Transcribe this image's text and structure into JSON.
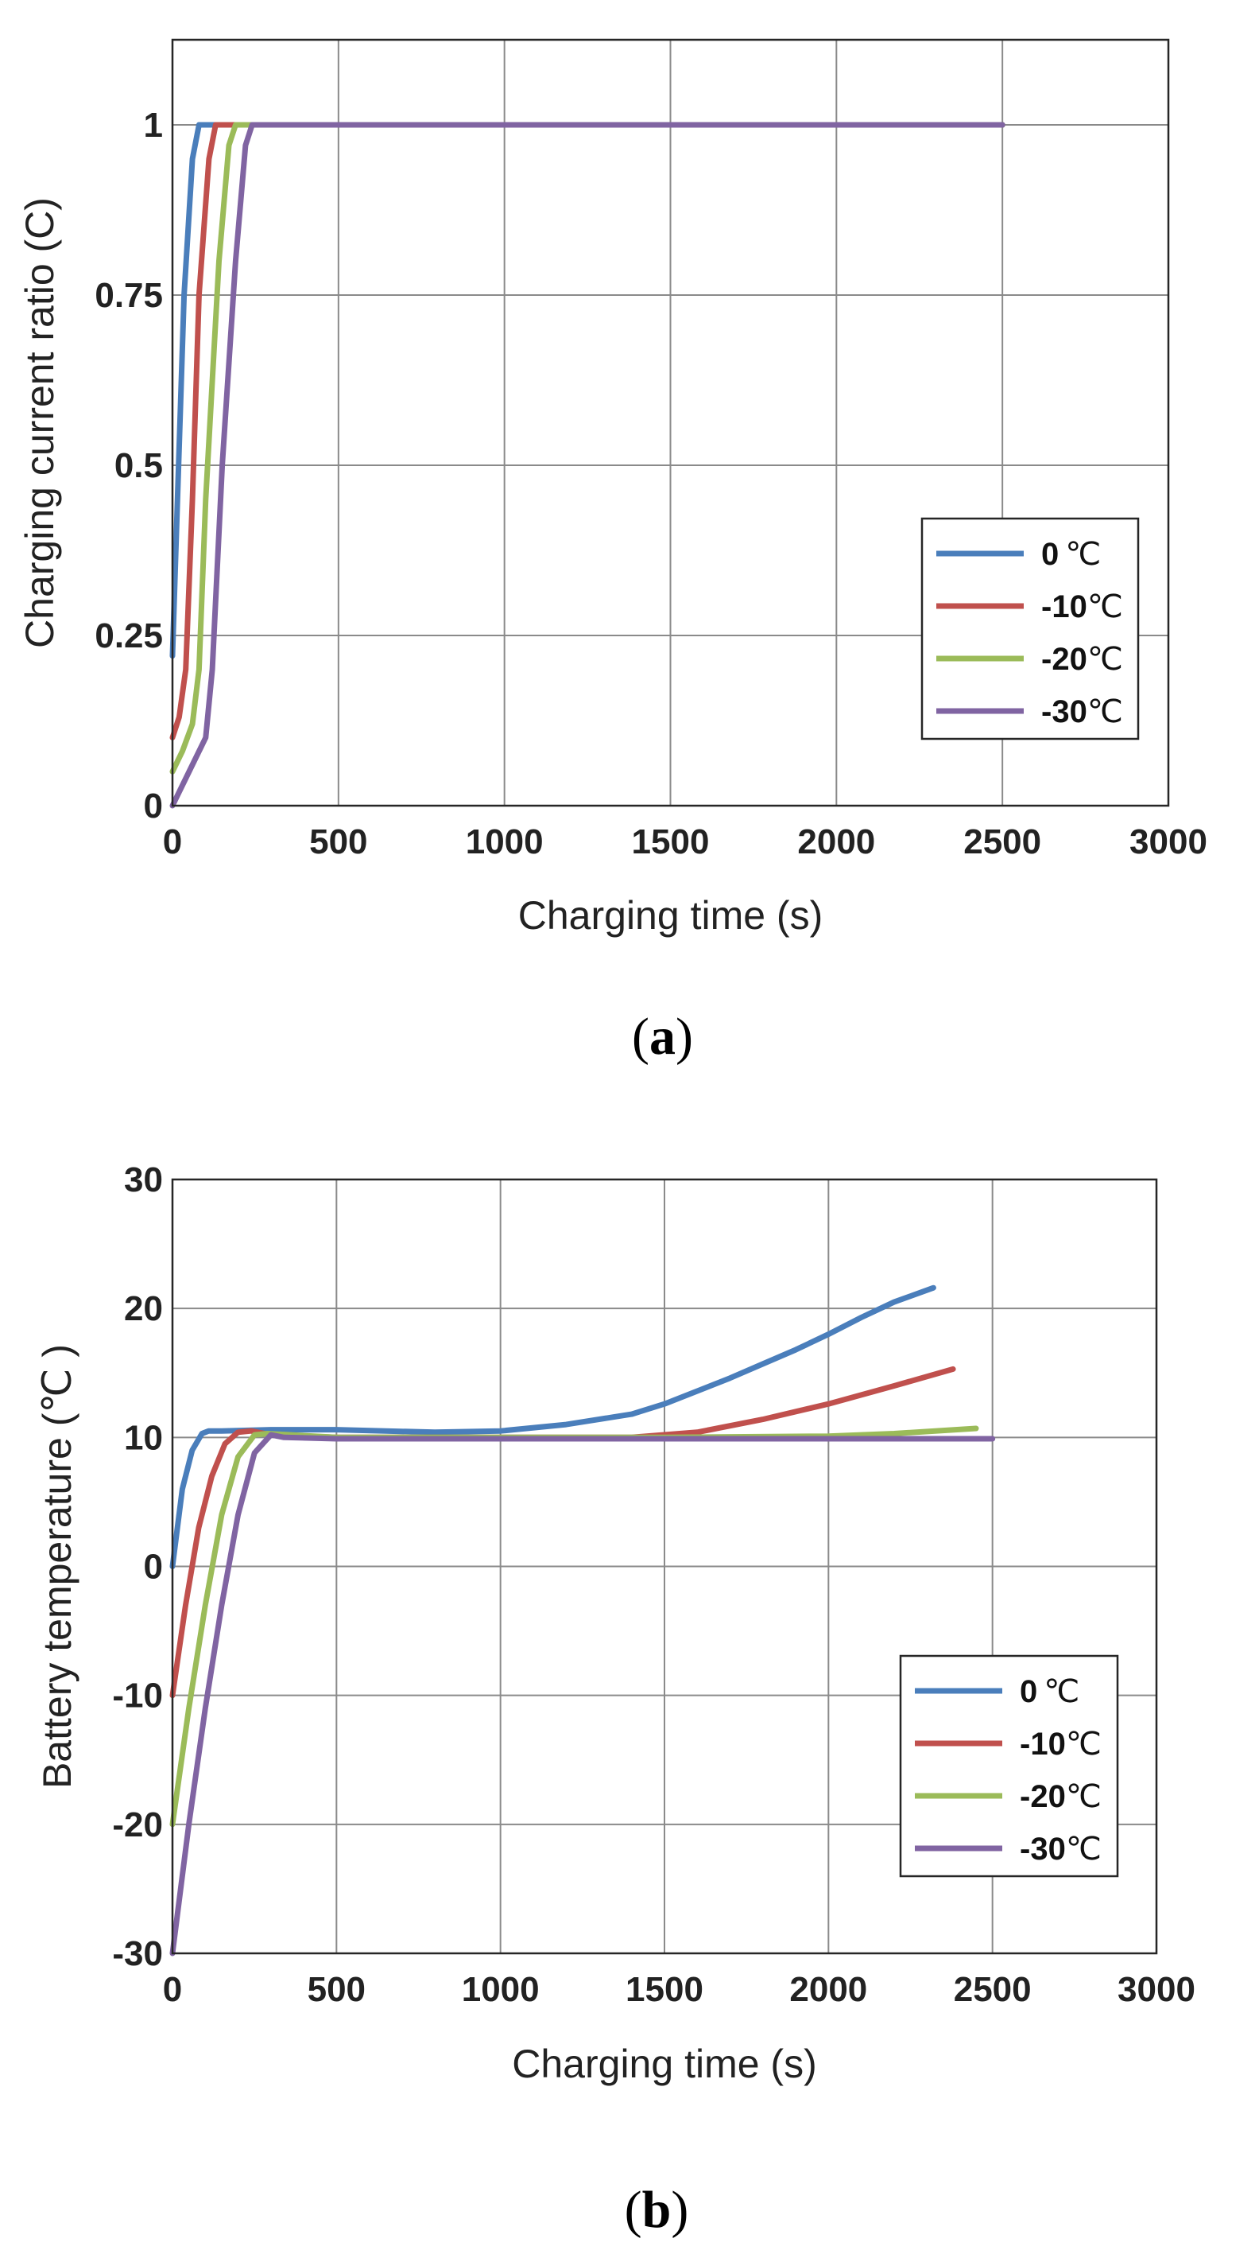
{
  "chart_data": [
    {
      "type": "line",
      "panel_label": "a",
      "xlabel": "Charging time (s)",
      "ylabel": "Charging current ratio (C)",
      "xlim": [
        0,
        3000
      ],
      "ylim": [
        0,
        1.125
      ],
      "xticks": [
        0,
        500,
        1000,
        1500,
        2000,
        2500,
        3000
      ],
      "xtick_labels": [
        "0",
        "500",
        "1000",
        "1500",
        "2000",
        "2500",
        "3000"
      ],
      "yticks": [
        0,
        0.25,
        0.5,
        0.75,
        1
      ],
      "ytick_labels": [
        "0",
        "0.25",
        "0.5",
        "0.75",
        "1"
      ],
      "grid": true,
      "legend_position": "lower-right",
      "series": [
        {
          "name": "0",
          "unit": "℃",
          "color": "#4a7ebb",
          "x": [
            0,
            15,
            35,
            60,
            80,
            95,
            2500
          ],
          "y": [
            0.22,
            0.45,
            0.75,
            0.95,
            1.0,
            1.0,
            1.0
          ]
        },
        {
          "name": "-10",
          "unit": "℃",
          "color": "#c0504d",
          "x": [
            0,
            20,
            40,
            60,
            80,
            110,
            130,
            145,
            2500
          ],
          "y": [
            0.1,
            0.13,
            0.2,
            0.45,
            0.75,
            0.95,
            1.0,
            1.0,
            1.0
          ]
        },
        {
          "name": "-20",
          "unit": "℃",
          "color": "#9bbb59",
          "x": [
            0,
            30,
            60,
            80,
            100,
            140,
            170,
            190,
            2500
          ],
          "y": [
            0.05,
            0.08,
            0.12,
            0.2,
            0.45,
            0.8,
            0.97,
            1.0,
            1.0
          ]
        },
        {
          "name": "-30",
          "unit": "℃",
          "color": "#8064a2",
          "x": [
            0,
            50,
            100,
            120,
            150,
            190,
            220,
            240,
            2500
          ],
          "y": [
            0.0,
            0.05,
            0.1,
            0.2,
            0.5,
            0.8,
            0.97,
            1.0,
            1.0
          ]
        }
      ]
    },
    {
      "type": "line",
      "panel_label": "b",
      "xlabel": "Charging time (s)",
      "ylabel": "Battery temperature (℃ )",
      "xlim": [
        0,
        3000
      ],
      "ylim": [
        -30,
        30
      ],
      "xticks": [
        0,
        500,
        1000,
        1500,
        2000,
        2500,
        3000
      ],
      "xtick_labels": [
        "0",
        "500",
        "1000",
        "1500",
        "2000",
        "2500",
        "3000"
      ],
      "yticks": [
        -30,
        -20,
        -10,
        0,
        10,
        20,
        30
      ],
      "ytick_labels": [
        "-30",
        "-20",
        "-10",
        "0",
        "10",
        "20",
        "30"
      ],
      "grid": true,
      "legend_position": "lower-right",
      "series": [
        {
          "name": "0",
          "unit": "℃",
          "color": "#4a7ebb",
          "x": [
            0,
            30,
            60,
            90,
            110,
            150,
            300,
            500,
            800,
            1000,
            1200,
            1400,
            1500,
            1600,
            1700,
            1800,
            1900,
            2000,
            2100,
            2200,
            2320
          ],
          "y": [
            0,
            6,
            9,
            10.3,
            10.5,
            10.5,
            10.6,
            10.6,
            10.4,
            10.5,
            11,
            11.8,
            12.6,
            13.6,
            14.6,
            15.7,
            16.8,
            18,
            19.3,
            20.5,
            21.6
          ]
        },
        {
          "name": "-10",
          "unit": "℃",
          "color": "#c0504d",
          "x": [
            0,
            40,
            80,
            120,
            160,
            200,
            240,
            300,
            500,
            1000,
            1400,
            1600,
            1800,
            2000,
            2200,
            2380
          ],
          "y": [
            -10,
            -3,
            3,
            7,
            9.5,
            10.4,
            10.5,
            10.2,
            10,
            10,
            10,
            10.4,
            11.4,
            12.6,
            14,
            15.3
          ]
        },
        {
          "name": "-20",
          "unit": "℃",
          "color": "#9bbb59",
          "x": [
            0,
            50,
            100,
            150,
            200,
            250,
            290,
            500,
            1000,
            1500,
            2000,
            2200,
            2450
          ],
          "y": [
            -20,
            -11,
            -3,
            4,
            8.5,
            10.2,
            10.3,
            10,
            10,
            10,
            10.1,
            10.3,
            10.7
          ]
        },
        {
          "name": "-30",
          "unit": "℃",
          "color": "#8064a2",
          "x": [
            0,
            50,
            100,
            150,
            200,
            250,
            300,
            340,
            500,
            1000,
            1500,
            2000,
            2500
          ],
          "y": [
            -30,
            -20,
            -11,
            -3,
            4,
            8.8,
            10.2,
            10,
            9.9,
            9.9,
            9.9,
            9.9,
            9.9
          ]
        }
      ]
    }
  ]
}
